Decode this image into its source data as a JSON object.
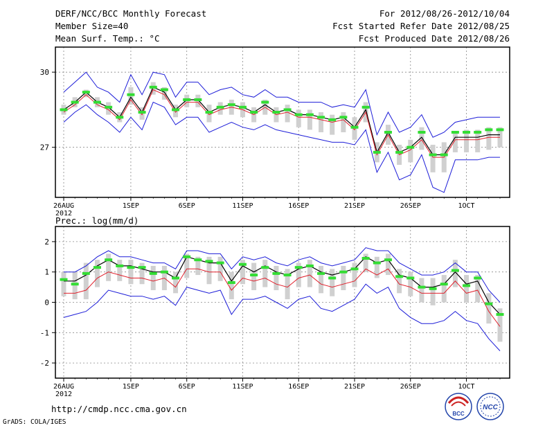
{
  "header": {
    "title": "DERF/NCC/BCC Monthly Forecast",
    "member_size": "Member Size=40",
    "variable": "Mean Surf. Temp.: °C",
    "period": "For 2012/08/26-2012/10/04",
    "refer_date": "Fcst Started Refer Date 2012/08/25",
    "produced_date": "Fcst Produced Date 2012/08/26"
  },
  "footer": {
    "url": "http://cmdp.ncc.cma.gov.cn",
    "grads": "GrADS: COLA/IGES",
    "logo_bcc": "BCC",
    "logo_ncc": "NCC"
  },
  "colors": {
    "mean": "#000000",
    "median": "#e0202c",
    "envelope": "#1c1cd8",
    "box": "#d0d0d0",
    "marker": "#33dd33",
    "axis": "#000000",
    "grid": "#888888"
  },
  "chart_data": [
    {
      "type": "line",
      "title": "Mean Surf. Temp.: °C",
      "x": [
        0,
        1,
        2,
        3,
        4,
        5,
        6,
        7,
        8,
        9,
        10,
        11,
        12,
        13,
        14,
        15,
        16,
        17,
        18,
        19,
        20,
        21,
        22,
        23,
        24,
        25,
        26,
        27,
        28,
        29,
        30,
        31,
        32,
        33,
        34,
        35,
        36,
        37,
        38,
        39
      ],
      "xtick_labels": [
        "26AUG",
        "1SEP",
        "6SEP",
        "11SEP",
        "16SEP",
        "21SEP",
        "26SEP",
        "1OCT"
      ],
      "xtick_positions": [
        0,
        6,
        11,
        16,
        21,
        26,
        31,
        36
      ],
      "year_label": "2012",
      "ylim": [
        25.0,
        31.0
      ],
      "yticks": [
        27,
        30
      ],
      "series": [
        {
          "name": "ensemble mean",
          "values": [
            28.5,
            28.8,
            29.2,
            28.8,
            28.6,
            28.2,
            29.0,
            28.4,
            29.4,
            29.2,
            28.5,
            28.9,
            28.9,
            28.4,
            28.6,
            28.7,
            28.6,
            28.4,
            28.7,
            28.4,
            28.5,
            28.3,
            28.3,
            28.2,
            28.1,
            28.2,
            27.8,
            28.5,
            26.8,
            27.6,
            26.8,
            27.0,
            27.4,
            26.7,
            26.7,
            27.4,
            27.4,
            27.4,
            27.5,
            27.5
          ]
        },
        {
          "name": "median",
          "values": [
            28.4,
            28.7,
            29.1,
            28.7,
            28.5,
            28.1,
            28.9,
            28.3,
            29.3,
            29.1,
            28.4,
            28.8,
            28.8,
            28.3,
            28.5,
            28.6,
            28.5,
            28.3,
            28.6,
            28.3,
            28.4,
            28.2,
            28.2,
            28.1,
            28.0,
            28.1,
            27.7,
            28.4,
            26.7,
            27.5,
            26.7,
            26.9,
            27.3,
            26.6,
            26.6,
            27.3,
            27.3,
            27.3,
            27.4,
            27.4
          ]
        },
        {
          "name": "max",
          "values": [
            29.2,
            29.6,
            30.0,
            29.4,
            29.2,
            28.8,
            29.9,
            29.1,
            30.0,
            29.9,
            29.0,
            29.6,
            29.6,
            29.1,
            29.3,
            29.4,
            29.1,
            29.0,
            29.3,
            29.0,
            29.0,
            28.8,
            28.8,
            28.8,
            28.6,
            28.7,
            28.6,
            29.3,
            27.5,
            28.4,
            27.6,
            27.8,
            28.3,
            27.4,
            27.6,
            28.0,
            28.1,
            28.2,
            28.2,
            28.2
          ]
        },
        {
          "name": "min",
          "values": [
            28.0,
            28.4,
            28.7,
            28.3,
            28.0,
            27.6,
            28.2,
            27.7,
            28.8,
            28.6,
            27.9,
            28.2,
            28.2,
            27.6,
            27.8,
            28.0,
            27.8,
            27.7,
            27.9,
            27.7,
            27.6,
            27.5,
            27.4,
            27.3,
            27.2,
            27.2,
            27.1,
            27.7,
            26.0,
            26.8,
            25.7,
            25.9,
            26.7,
            25.4,
            25.2,
            26.5,
            26.5,
            26.5,
            26.6,
            26.6
          ]
        }
      ],
      "box_low": [
        28.3,
        28.6,
        29.0,
        28.6,
        28.3,
        28.0,
        28.7,
        28.1,
        29.1,
        28.9,
        28.2,
        28.6,
        28.6,
        28.0,
        28.3,
        28.3,
        28.2,
        28.0,
        28.3,
        28.0,
        28.0,
        27.8,
        27.7,
        27.6,
        27.5,
        27.6,
        27.3,
        28.0,
        26.4,
        27.1,
        26.3,
        26.4,
        26.9,
        26.0,
        26.0,
        26.8,
        26.8,
        26.8,
        26.9,
        27.0
      ],
      "box_high": [
        28.7,
        29.0,
        29.3,
        29.0,
        28.8,
        28.4,
        29.4,
        28.6,
        29.6,
        29.4,
        28.7,
        29.1,
        29.1,
        28.7,
        28.8,
        28.9,
        28.8,
        28.6,
        28.9,
        28.6,
        28.7,
        28.5,
        28.5,
        28.4,
        28.3,
        28.4,
        28.2,
        28.8,
        27.2,
        27.9,
        27.1,
        27.3,
        27.8,
        27.1,
        27.2,
        27.6,
        27.7,
        27.7,
        27.8,
        27.8
      ],
      "markers": [
        28.5,
        28.8,
        29.2,
        28.8,
        28.6,
        28.2,
        29.1,
        28.4,
        29.4,
        29.3,
        28.5,
        28.9,
        28.9,
        28.4,
        28.6,
        28.7,
        28.6,
        28.4,
        28.8,
        28.4,
        28.5,
        28.3,
        28.3,
        28.2,
        28.1,
        28.2,
        27.8,
        28.6,
        26.8,
        27.6,
        26.8,
        27.0,
        27.6,
        26.7,
        26.7,
        27.6,
        27.6,
        27.6,
        27.7,
        27.7
      ]
    },
    {
      "type": "line",
      "title": "Prec.: log(mm/d)",
      "x": [
        0,
        1,
        2,
        3,
        4,
        5,
        6,
        7,
        8,
        9,
        10,
        11,
        12,
        13,
        14,
        15,
        16,
        17,
        18,
        19,
        20,
        21,
        22,
        23,
        24,
        25,
        26,
        27,
        28,
        29,
        30,
        31,
        32,
        33,
        34,
        35,
        36,
        37,
        38,
        39
      ],
      "xtick_labels": [
        "26AUG",
        "1SEP",
        "6SEP",
        "11SEP",
        "16SEP",
        "21SEP",
        "26SEP",
        "1OCT"
      ],
      "xtick_positions": [
        0,
        6,
        11,
        16,
        21,
        26,
        31,
        36
      ],
      "year_label": "2012",
      "ylim": [
        -2.5,
        2.5
      ],
      "yticks": [
        -2,
        -1,
        0,
        1,
        2
      ],
      "series": [
        {
          "name": "ensemble mean",
          "values": [
            0.7,
            0.7,
            0.9,
            1.2,
            1.4,
            1.2,
            1.2,
            1.1,
            1.0,
            1.0,
            0.8,
            1.5,
            1.4,
            1.3,
            1.3,
            0.7,
            1.2,
            1.0,
            1.2,
            1.0,
            0.9,
            1.1,
            1.2,
            1.0,
            0.9,
            1.0,
            1.1,
            1.5,
            1.3,
            1.4,
            0.9,
            0.8,
            0.5,
            0.5,
            0.6,
            1.0,
            0.6,
            0.7,
            0.0,
            -0.4
          ]
        },
        {
          "name": "median",
          "values": [
            0.3,
            0.3,
            0.4,
            0.8,
            1.0,
            0.9,
            0.8,
            0.8,
            0.7,
            0.8,
            0.5,
            1.1,
            1.1,
            1.0,
            1.0,
            0.4,
            0.8,
            0.7,
            0.8,
            0.6,
            0.5,
            0.8,
            0.9,
            0.6,
            0.5,
            0.6,
            0.7,
            1.1,
            0.9,
            1.1,
            0.6,
            0.5,
            0.3,
            0.3,
            0.3,
            0.7,
            0.3,
            0.4,
            -0.3,
            -0.8
          ]
        },
        {
          "name": "max",
          "values": [
            1.0,
            1.0,
            1.2,
            1.5,
            1.7,
            1.5,
            1.5,
            1.4,
            1.3,
            1.3,
            1.1,
            1.7,
            1.7,
            1.6,
            1.6,
            1.1,
            1.5,
            1.4,
            1.5,
            1.3,
            1.2,
            1.4,
            1.5,
            1.3,
            1.2,
            1.3,
            1.4,
            1.8,
            1.7,
            1.7,
            1.3,
            1.1,
            0.9,
            0.9,
            1.0,
            1.3,
            1.0,
            1.0,
            0.4,
            0.0
          ]
        },
        {
          "name": "min",
          "values": [
            -0.5,
            -0.4,
            -0.3,
            0.0,
            0.4,
            0.3,
            0.2,
            0.2,
            0.1,
            0.2,
            -0.1,
            0.5,
            0.4,
            0.3,
            0.4,
            -0.4,
            0.1,
            0.1,
            0.2,
            0.0,
            -0.2,
            0.1,
            0.2,
            -0.2,
            -0.3,
            -0.1,
            0.1,
            0.6,
            0.3,
            0.5,
            -0.2,
            -0.5,
            -0.7,
            -0.7,
            -0.6,
            -0.3,
            -0.6,
            -0.7,
            -1.2,
            -1.6
          ]
        },
        {
          "name": "markers",
          "values": [
            0.75,
            0.6,
            0.95,
            1.15,
            1.4,
            1.2,
            1.15,
            1.15,
            0.95,
            1.0,
            0.8,
            1.5,
            1.4,
            1.35,
            1.3,
            0.65,
            1.25,
            0.9,
            1.15,
            0.95,
            0.9,
            1.15,
            1.2,
            0.95,
            0.8,
            1.0,
            1.1,
            1.45,
            1.3,
            1.4,
            0.85,
            0.8,
            0.5,
            0.45,
            0.6,
            1.05,
            0.55,
            0.8,
            -0.05,
            -0.4
          ]
        }
      ],
      "box_low": [
        0.2,
        0.1,
        0.1,
        0.5,
        0.7,
        0.7,
        0.6,
        0.6,
        0.4,
        0.4,
        0.3,
        0.8,
        0.9,
        0.6,
        0.7,
        0.1,
        0.6,
        0.4,
        0.5,
        0.4,
        0.1,
        0.5,
        0.5,
        0.3,
        0.2,
        0.4,
        0.5,
        1.0,
        0.8,
        0.9,
        0.3,
        0.2,
        0.0,
        -0.1,
        0.0,
        0.5,
        0.0,
        0.0,
        -0.7,
        -1.3
      ],
      "box_high": [
        1.0,
        1.0,
        1.3,
        1.4,
        1.6,
        1.4,
        1.4,
        1.3,
        1.2,
        1.2,
        1.0,
        1.6,
        1.5,
        1.5,
        1.5,
        1.0,
        1.4,
        1.3,
        1.4,
        1.2,
        1.1,
        1.3,
        1.4,
        1.2,
        1.1,
        1.2,
        1.3,
        1.6,
        1.5,
        1.6,
        1.1,
        1.0,
        0.8,
        0.8,
        0.9,
        1.4,
        0.9,
        0.9,
        0.3,
        -0.2
      ]
    }
  ]
}
